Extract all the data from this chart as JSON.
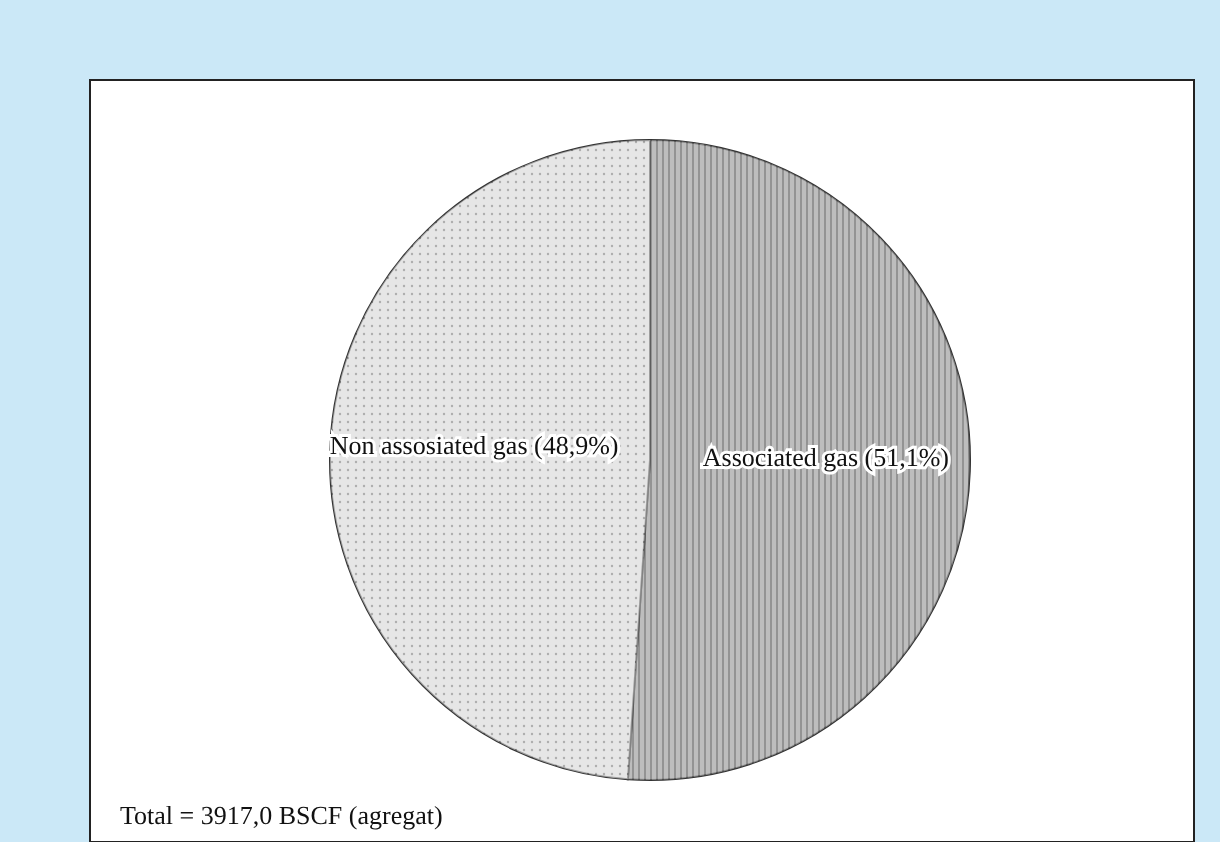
{
  "chart_data": {
    "type": "pie",
    "categories": [
      "Associated gas",
      "Non assosiated gas"
    ],
    "values": [
      51.1,
      48.9
    ],
    "value_labels": [
      "(51,1%)",
      "(48,9%)"
    ],
    "colors": [
      "#bdbdbd",
      "#e6e6e6"
    ],
    "annotations": [
      "Total =  3917,0 BSCF (agregat)"
    ]
  }
}
